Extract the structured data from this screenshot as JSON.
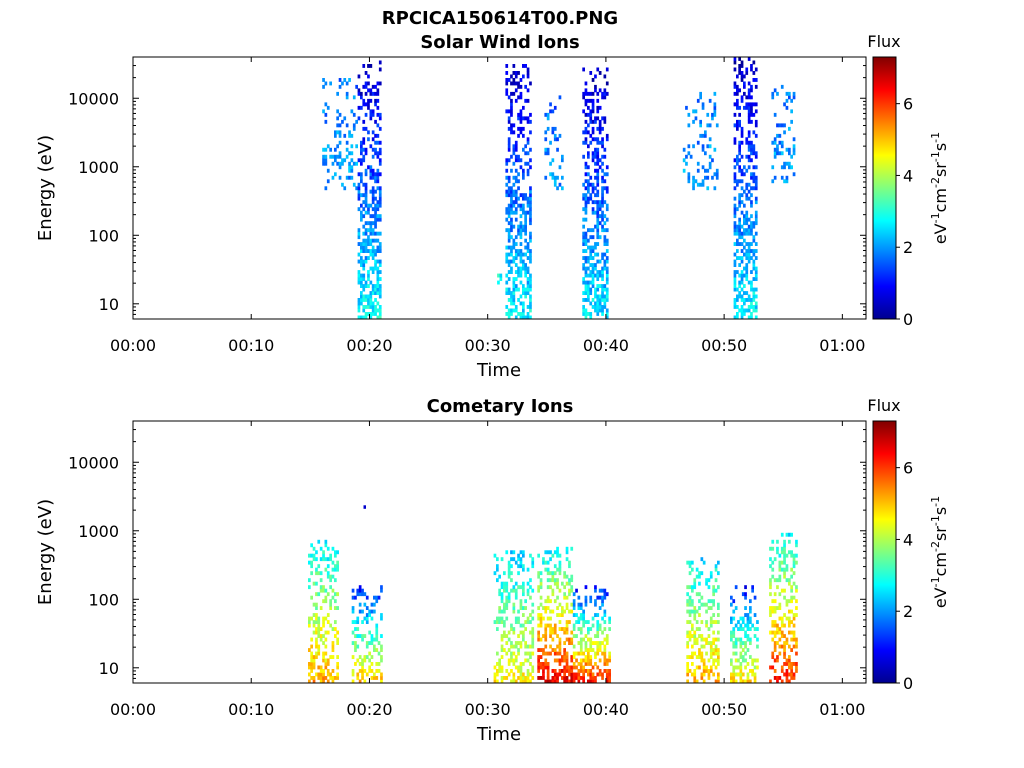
{
  "figure_title": "RPCICA150614T00.PNG",
  "colormap": {
    "name": "jet",
    "stops": [
      "#00008f",
      "#0000ff",
      "#0080ff",
      "#00ffff",
      "#80ff80",
      "#ffff00",
      "#ff8000",
      "#ff0000",
      "#800000"
    ]
  },
  "chart_data": [
    {
      "type": "heatmap",
      "title": "Solar Wind Ions",
      "xlabel": "Time",
      "ylabel": "Energy (eV)",
      "x_ticks": [
        "00:00",
        "00:10",
        "00:20",
        "00:30",
        "00:40",
        "00:50",
        "01:00"
      ],
      "x_tick_minutes": [
        0,
        10,
        20,
        30,
        40,
        50,
        60
      ],
      "xlim_minutes": [
        0,
        62
      ],
      "y_scale": "log",
      "y_ticks": [
        "10",
        "100",
        "1000",
        "10000"
      ],
      "y_tick_values": [
        10,
        100,
        1000,
        10000
      ],
      "ylim": [
        6,
        40000
      ],
      "colorbar": {
        "label": "Flux",
        "unit": "eV-1cm-2sr-1s-1",
        "ticks": [
          "0",
          "2",
          "4",
          "6"
        ],
        "tick_values": [
          0,
          2,
          4,
          6
        ],
        "range": [
          0,
          7.3
        ]
      },
      "bursts": [
        {
          "t_start": 16.0,
          "t_end": 18.8,
          "e_min": 500,
          "e_max": 18000,
          "flux_high_e": 1.8,
          "flux_low_e": 2.0,
          "density": 0.25
        },
        {
          "t_start": 19.0,
          "t_end": 20.9,
          "e_min": 6,
          "e_max": 32000,
          "flux_high_e": 0.4,
          "flux_low_e": 2.8,
          "density": 0.65
        },
        {
          "t_start": 30.8,
          "t_end": 31.2,
          "e_min": 20,
          "e_max": 30,
          "flux_high_e": 2.8,
          "flux_low_e": 2.8,
          "density": 0.9
        },
        {
          "t_start": 31.5,
          "t_end": 33.6,
          "e_min": 6,
          "e_max": 30000,
          "flux_high_e": 0.5,
          "flux_low_e": 2.7,
          "density": 0.6
        },
        {
          "t_start": 34.8,
          "t_end": 36.3,
          "e_min": 500,
          "e_max": 10000,
          "flux_high_e": 1.6,
          "flux_low_e": 2.0,
          "density": 0.3
        },
        {
          "t_start": 38.0,
          "t_end": 40.2,
          "e_min": 6,
          "e_max": 28000,
          "flux_high_e": 0.4,
          "flux_low_e": 2.6,
          "density": 0.6
        },
        {
          "t_start": 46.5,
          "t_end": 49.5,
          "e_min": 500,
          "e_max": 12000,
          "flux_high_e": 1.8,
          "flux_low_e": 2.0,
          "density": 0.25
        },
        {
          "t_start": 50.8,
          "t_end": 52.8,
          "e_min": 6,
          "e_max": 38000,
          "flux_high_e": 0.4,
          "flux_low_e": 2.7,
          "density": 0.6
        },
        {
          "t_start": 54.0,
          "t_end": 56.0,
          "e_min": 600,
          "e_max": 15000,
          "flux_high_e": 1.7,
          "flux_low_e": 2.0,
          "density": 0.25
        }
      ]
    },
    {
      "type": "heatmap",
      "title": "Cometary Ions",
      "xlabel": "Time",
      "ylabel": "Energy (eV)",
      "x_ticks": [
        "00:00",
        "00:10",
        "00:20",
        "00:30",
        "00:40",
        "00:50",
        "01:00"
      ],
      "x_tick_minutes": [
        0,
        10,
        20,
        30,
        40,
        50,
        60
      ],
      "xlim_minutes": [
        0,
        62
      ],
      "y_scale": "log",
      "y_ticks": [
        "10",
        "100",
        "1000",
        "10000"
      ],
      "y_tick_values": [
        10,
        100,
        1000,
        10000
      ],
      "ylim": [
        6,
        40000
      ],
      "colorbar": {
        "label": "Flux",
        "unit": "eV-1cm-2sr-1s-1",
        "ticks": [
          "0",
          "2",
          "4",
          "6"
        ],
        "tick_values": [
          0,
          2,
          4,
          6
        ],
        "range": [
          0,
          7.3
        ]
      },
      "bursts": [
        {
          "t_start": 14.8,
          "t_end": 17.2,
          "e_min": 6,
          "e_max": 700,
          "flux_high_e": 2.6,
          "flux_low_e": 5.2,
          "density": 0.5
        },
        {
          "t_start": 18.5,
          "t_end": 21.0,
          "e_min": 6,
          "e_max": 150,
          "flux_high_e": 1.0,
          "flux_low_e": 5.0,
          "density": 0.5
        },
        {
          "t_start": 30.5,
          "t_end": 33.8,
          "e_min": 6,
          "e_max": 500,
          "flux_high_e": 2.4,
          "flux_low_e": 4.6,
          "density": 0.5
        },
        {
          "t_start": 34.2,
          "t_end": 37.2,
          "e_min": 6,
          "e_max": 550,
          "flux_high_e": 2.6,
          "flux_low_e": 6.5,
          "density": 0.6
        },
        {
          "t_start": 37.2,
          "t_end": 40.3,
          "e_min": 6,
          "e_max": 150,
          "flux_high_e": 1.0,
          "flux_low_e": 6.2,
          "density": 0.6
        },
        {
          "t_start": 46.8,
          "t_end": 49.5,
          "e_min": 6,
          "e_max": 400,
          "flux_high_e": 2.5,
          "flux_low_e": 5.2,
          "density": 0.5
        },
        {
          "t_start": 50.5,
          "t_end": 52.8,
          "e_min": 6,
          "e_max": 150,
          "flux_high_e": 1.0,
          "flux_low_e": 4.8,
          "density": 0.5
        },
        {
          "t_start": 53.8,
          "t_end": 56.2,
          "e_min": 6,
          "e_max": 900,
          "flux_high_e": 2.6,
          "flux_low_e": 6.2,
          "density": 0.5
        }
      ],
      "isolated_points": [
        {
          "t": 19.5,
          "energy": 2200,
          "flux": 0.5
        }
      ]
    }
  ]
}
